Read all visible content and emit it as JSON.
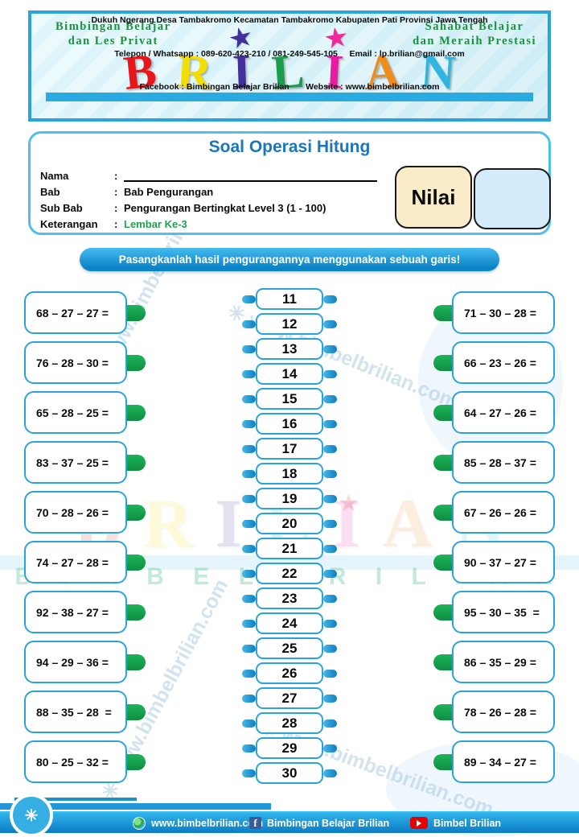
{
  "header": {
    "tagline_left_line1": "Bimbingan Belajar",
    "tagline_left_line2": "dan Les Privat",
    "tagline_right_line1": "Sahabat Belajar",
    "tagline_right_line2": "dan Meraih Prestasi",
    "logo_letters": [
      {
        "ch": "B",
        "color": "#e8151b",
        "tilt": -6
      },
      {
        "ch": "R",
        "color": "#f2de00",
        "tilt": 4
      },
      {
        "ch": "I",
        "color": "#43309a",
        "tilt": -2,
        "star": "#43309a"
      },
      {
        "ch": "L",
        "color": "#1a9e4b",
        "tilt": -4
      },
      {
        "ch": "I",
        "color": "#e91ba0",
        "tilt": 3,
        "star": "#f0289a"
      },
      {
        "ch": "A",
        "color": "#f08c1e",
        "tilt": -3
      },
      {
        "ch": "N",
        "color": "#2fb6e0",
        "tilt": 4
      }
    ],
    "address_line": "Dukuh Ngerang Desa Tambakromo Kecamatan Tambakromo Kabupaten Pati Provinsi Jawa Tengah",
    "contact_line": "Telepon / Whatsapp : 089-620-423-210 / 081-249-545-105     Email : lp.brilian@gmail.com",
    "social_line": "Facebook : Bimbingan Belajar Brilian       Website : www.bimbelbrilian.com"
  },
  "form": {
    "title": "Soal Operasi Hitung",
    "rows": [
      {
        "label": "Nama",
        "value": ""
      },
      {
        "label": "Bab",
        "value": "Bab Pengurangan"
      },
      {
        "label": "Sub Bab",
        "value": "Pengurangan Bertingkat Level 3 (1 - 100)"
      },
      {
        "label": "Keterangan",
        "value": "Lembar Ke-3"
      }
    ],
    "colon": ":",
    "nilai_label": "Nilai"
  },
  "instruction": "Pasangkanlah hasil pengurangannya menggunakan sebuah garis!",
  "matching": {
    "left_problems": [
      "68 – 27 – 27 =",
      "76 – 28 – 30 =",
      "65 – 28 – 25 =",
      "83 – 37 – 25 =",
      "70 – 28 – 26 =",
      "74 – 27 – 28 =",
      "92 – 38 – 27 =",
      "94 – 29 – 36 =",
      "88 – 35 – 28  =",
      "80 – 25 – 32 ="
    ],
    "answer_options": [
      "11",
      "12",
      "13",
      "14",
      "15",
      "16",
      "17",
      "18",
      "19",
      "20",
      "21",
      "22",
      "23",
      "24",
      "25",
      "26",
      "27",
      "28",
      "29",
      "30"
    ],
    "right_problems": [
      "71 – 30 – 28 =",
      "66 – 23 – 26 =",
      "64 – 27 – 26 =",
      "85 – 28 – 37 =",
      "67 – 26 – 26 =",
      "90 – 37 – 27 =",
      "95 – 30 – 35  =",
      "86 – 35 – 29 =",
      "78 – 26 – 28 =",
      "89 – 34 – 27 ="
    ]
  },
  "watermark": {
    "site_text": "✳  www.bimbelbrilian.com",
    "bimbel_text": "B I M B E L   B R I L I A N",
    "logo_text_letters": [
      {
        "ch": "B",
        "color": "#e8151b"
      },
      {
        "ch": "R",
        "color": "#f2de00"
      },
      {
        "ch": "I",
        "color": "#43309a"
      },
      {
        "ch": "L",
        "color": "#1a9e4b"
      },
      {
        "ch": "I",
        "color": "#e91ba0"
      },
      {
        "ch": "A",
        "color": "#f08c1e"
      },
      {
        "ch": "N",
        "color": "#2fb6e0"
      }
    ]
  },
  "footer": {
    "website": "www.bimbelbrilian.com",
    "facebook": "Bimbingan Belajar Brilian",
    "youtube": "Bimbel Brilian",
    "circle_glyph": "✳",
    "facebook_glyph": "f"
  },
  "colors": {
    "title_blue": "#1b75bc",
    "keterangan_green": "#21a14c",
    "box_border_blue": "#29a3dc",
    "tab_green": "#14a04e",
    "footer_blue": "#1787cc"
  }
}
